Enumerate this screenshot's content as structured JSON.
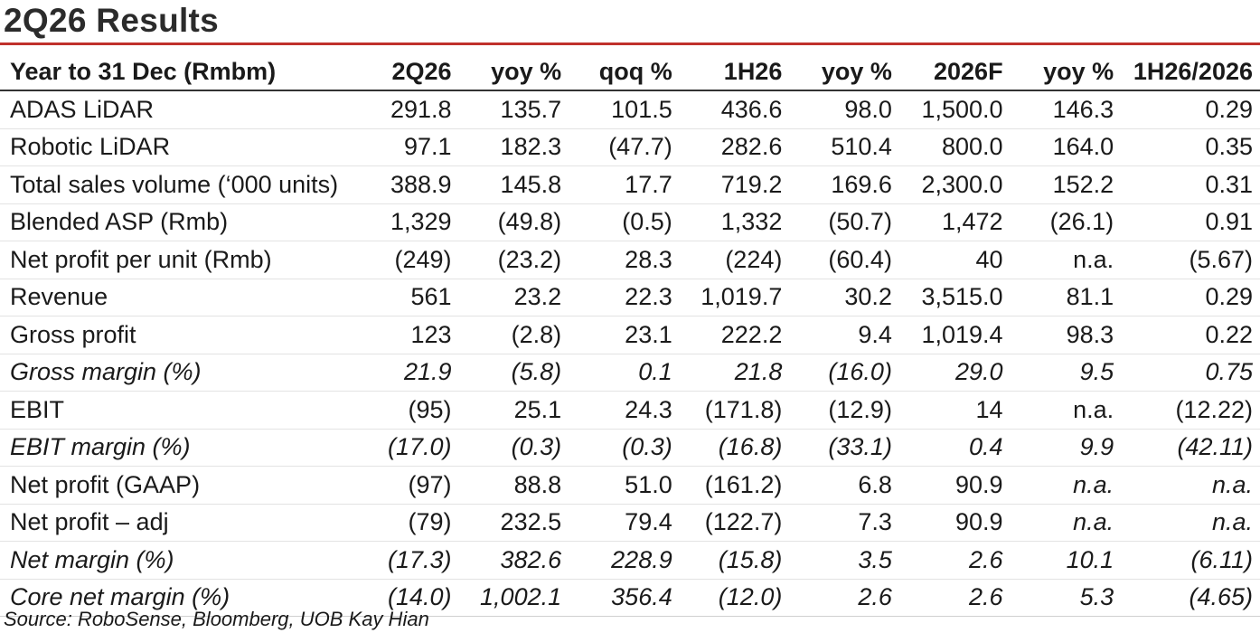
{
  "title": "2Q26 Results",
  "accent_color": "#c0312b",
  "headers": [
    "Year to 31 Dec (Rmbm)",
    "2Q26",
    "yoy %",
    "qoq %",
    "1H26",
    "yoy %",
    "2026F",
    "yoy %",
    "1H26/2026"
  ],
  "rows": [
    {
      "label": "ADAS LiDAR",
      "italic": false,
      "values": [
        "291.8",
        "135.7",
        "101.5",
        "436.6",
        "98.0",
        "1,500.0",
        "146.3",
        "0.29"
      ]
    },
    {
      "label": "Robotic LiDAR",
      "italic": false,
      "values": [
        "97.1",
        "182.3",
        "(47.7)",
        "282.6",
        "510.4",
        "800.0",
        "164.0",
        "0.35"
      ]
    },
    {
      "label": "Total sales volume (‘000 units)",
      "italic": false,
      "values": [
        "388.9",
        "145.8",
        "17.7",
        "719.2",
        "169.6",
        "2,300.0",
        "152.2",
        "0.31"
      ]
    },
    {
      "label": "Blended ASP (Rmb)",
      "italic": false,
      "values": [
        "1,329",
        "(49.8)",
        "(0.5)",
        "1,332",
        "(50.7)",
        "1,472",
        "(26.1)",
        "0.91"
      ]
    },
    {
      "label": "Net profit per unit (Rmb)",
      "italic": false,
      "values": [
        "(249)",
        "(23.2)",
        "28.3",
        "(224)",
        "(60.4)",
        "40",
        "n.a.",
        "(5.67)"
      ]
    },
    {
      "label": "Revenue",
      "italic": false,
      "values": [
        "561",
        "23.2",
        "22.3",
        "1,019.7",
        "30.2",
        "3,515.0",
        "81.1",
        "0.29"
      ]
    },
    {
      "label": "Gross profit",
      "italic": false,
      "values": [
        "123",
        "(2.8)",
        "23.1",
        "222.2",
        "9.4",
        "1,019.4",
        "98.3",
        "0.22"
      ]
    },
    {
      "label": "Gross margin (%)",
      "italic": true,
      "values": [
        "21.9",
        "(5.8)",
        "0.1",
        "21.8",
        "(16.0)",
        "29.0",
        "9.5",
        "0.75"
      ]
    },
    {
      "label": "EBIT",
      "italic": false,
      "values": [
        "(95)",
        "25.1",
        "24.3",
        "(171.8)",
        "(12.9)",
        "14",
        "n.a.",
        "(12.22)"
      ]
    },
    {
      "label": "EBIT margin (%)",
      "italic": true,
      "values": [
        "(17.0)",
        "(0.3)",
        "(0.3)",
        "(16.8)",
        "(33.1)",
        "0.4",
        "9.9",
        "(42.11)"
      ]
    },
    {
      "label": "Net profit (GAAP)",
      "italic": false,
      "values": [
        "(97)",
        "88.8",
        "51.0",
        "(161.2)",
        "6.8",
        "90.9",
        "n.a.",
        "n.a."
      ]
    },
    {
      "label": "Net profit – adj",
      "italic": false,
      "values": [
        "(79)",
        "232.5",
        "79.4",
        "(122.7)",
        "7.3",
        "90.9",
        "n.a.",
        "n.a."
      ]
    },
    {
      "label": "Net margin (%)",
      "italic": true,
      "values": [
        "(17.3)",
        "382.6",
        "228.9",
        "(15.8)",
        "3.5",
        "2.6",
        "10.1",
        "(6.11)"
      ]
    },
    {
      "label": "Core net margin (%)",
      "italic": true,
      "values": [
        "(14.0)",
        "1,002.1",
        "356.4",
        "(12.0)",
        "2.6",
        "2.6",
        "5.3",
        "(4.65)"
      ]
    }
  ],
  "source": "Source: RoboSense, Bloomberg, UOB Kay Hian"
}
